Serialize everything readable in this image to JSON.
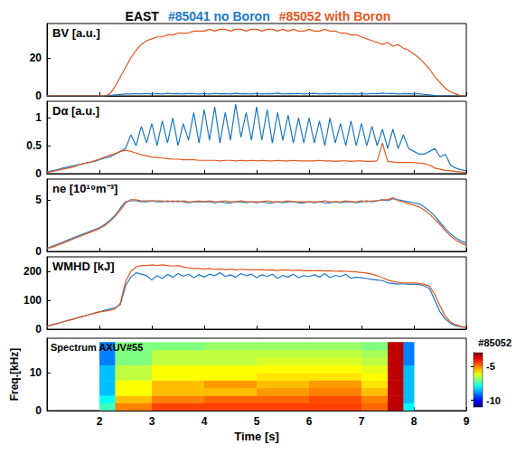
{
  "chart_data": {
    "type": "line",
    "title": "EAST",
    "xlabel": "Time [s]",
    "xlim": [
      1,
      9
    ],
    "xticks": [
      2,
      3,
      4,
      5,
      6,
      7,
      8,
      9
    ],
    "x": [
      1,
      1.1,
      1.2,
      1.3,
      1.4,
      1.5,
      1.6,
      1.7,
      1.8,
      1.9,
      2,
      2.1,
      2.2,
      2.3,
      2.4,
      2.5,
      2.6,
      2.7,
      2.8,
      2.9,
      3,
      3.1,
      3.2,
      3.3,
      3.4,
      3.5,
      3.6,
      3.7,
      3.8,
      3.9,
      4,
      4.1,
      4.2,
      4.3,
      4.4,
      4.5,
      4.6,
      4.7,
      4.8,
      4.9,
      5,
      5.1,
      5.2,
      5.3,
      5.4,
      5.5,
      5.6,
      5.7,
      5.8,
      5.9,
      6,
      6.1,
      6.2,
      6.3,
      6.4,
      6.5,
      6.6,
      6.7,
      6.8,
      6.9,
      7,
      7.1,
      7.2,
      7.3,
      7.4,
      7.5,
      7.6,
      7.7,
      7.8,
      7.9,
      8,
      8.1,
      8.2,
      8.3,
      8.4,
      8.5,
      8.6,
      8.7,
      8.8,
      8.9,
      9
    ],
    "panels": [
      {
        "label": "BV [a.u.]",
        "ylim": [
          0,
          38
        ],
        "yticks": [
          0,
          20
        ],
        "series": [
          {
            "name": "#85041 no Boron",
            "color": "#1e78c8",
            "values": [
              0,
              0,
              0,
              0,
              0,
              0,
              0,
              0,
              0,
              0,
              0,
              0,
              0.2,
              0.5,
              0.8,
              1,
              1,
              1.2,
              1,
              1.3,
              1,
              1.2,
              1,
              1.4,
              1.1,
              1.2,
              1,
              1.3,
              1.2,
              1,
              1.2,
              1,
              1.3,
              1.1,
              1.2,
              1,
              1.4,
              1.1,
              1.2,
              1,
              1.3,
              1,
              1.2,
              1.1,
              1.5,
              1,
              1.2,
              1.1,
              1.3,
              1,
              1.2,
              1.4,
              1,
              1.2,
              1.1,
              1.3,
              1,
              1.2,
              1.1,
              1,
              1.2,
              1,
              1.3,
              1.1,
              1.5,
              1.2,
              1.3,
              1,
              1.2,
              1.1,
              1,
              1.2,
              0.8,
              0.5,
              0.2,
              0,
              0,
              0,
              0,
              0,
              0
            ]
          },
          {
            "name": "#85052 with Boron",
            "color": "#e2581e",
            "values": [
              0,
              0,
              0,
              0,
              0,
              0,
              0,
              0,
              0,
              0,
              0,
              0,
              1,
              5,
              10,
              15,
              20,
              24,
              27,
              29,
              30,
              31,
              31,
              32,
              32,
              33,
              33,
              33,
              34,
              34,
              34,
              35,
              34,
              35,
              35,
              34,
              35,
              35,
              34,
              35,
              35,
              34,
              35,
              35,
              34,
              35,
              34,
              35,
              34,
              34,
              35,
              34,
              34,
              35,
              34,
              34,
              33,
              33,
              32,
              32,
              31,
              30,
              29,
              28,
              27,
              28,
              26,
              27,
              25,
              24,
              22,
              20,
              17,
              14,
              10,
              7,
              4,
              2,
              1,
              0,
              0
            ]
          }
        ]
      },
      {
        "label": "Dα [a.u.]",
        "ylim": [
          0,
          1.3
        ],
        "yticks": [
          0,
          0.5,
          1
        ],
        "series": [
          {
            "name": "#85041 no Boron",
            "color": "#1e78c8",
            "values": [
              0.03,
              0.05,
              0.07,
              0.1,
              0.12,
              0.14,
              0.16,
              0.18,
              0.2,
              0.22,
              0.25,
              0.28,
              0.3,
              0.35,
              0.4,
              0.45,
              0.7,
              0.5,
              0.85,
              0.55,
              0.9,
              0.5,
              0.95,
              0.55,
              1.0,
              0.5,
              0.9,
              0.6,
              1.1,
              0.55,
              1.15,
              0.6,
              1.2,
              0.55,
              1.1,
              0.6,
              1.25,
              0.65,
              1.1,
              0.6,
              1.2,
              0.6,
              1.15,
              0.55,
              1.1,
              0.6,
              1.05,
              0.55,
              1.0,
              0.55,
              1.0,
              0.55,
              0.95,
              0.5,
              1.0,
              0.55,
              0.9,
              0.5,
              0.95,
              0.5,
              0.9,
              0.5,
              0.85,
              0.5,
              0.8,
              0.45,
              0.8,
              0.45,
              0.7,
              0.45,
              0.4,
              0.35,
              0.35,
              0.4,
              0.45,
              0.3,
              0.35,
              0.15,
              0.1,
              0.07,
              0.05
            ]
          },
          {
            "name": "#85052 with Boron",
            "color": "#e2581e",
            "values": [
              0.02,
              0.04,
              0.06,
              0.08,
              0.1,
              0.12,
              0.15,
              0.18,
              0.2,
              0.23,
              0.26,
              0.3,
              0.33,
              0.36,
              0.4,
              0.42,
              0.4,
              0.37,
              0.34,
              0.32,
              0.3,
              0.29,
              0.28,
              0.27,
              0.26,
              0.26,
              0.25,
              0.25,
              0.25,
              0.24,
              0.24,
              0.24,
              0.24,
              0.23,
              0.24,
              0.24,
              0.23,
              0.24,
              0.23,
              0.24,
              0.23,
              0.24,
              0.23,
              0.23,
              0.24,
              0.23,
              0.23,
              0.24,
              0.23,
              0.23,
              0.23,
              0.23,
              0.24,
              0.23,
              0.23,
              0.22,
              0.23,
              0.23,
              0.22,
              0.23,
              0.23,
              0.22,
              0.22,
              0.23,
              0.55,
              0.22,
              0.21,
              0.2,
              0.2,
              0.2,
              0.2,
              0.19,
              0.18,
              0.15,
              0.1,
              0.08,
              0.06,
              0.05,
              0.04,
              0.03,
              0.02
            ]
          }
        ]
      },
      {
        "label": "ne [10¹⁹m⁻³]",
        "ylim": [
          0,
          7
        ],
        "yticks": [
          0,
          5
        ],
        "series": [
          {
            "name": "#85041 no Boron",
            "color": "#1e78c8",
            "values": [
              0.3,
              0.5,
              0.7,
              0.9,
              1.1,
              1.3,
              1.5,
              1.7,
              1.9,
              2.1,
              2.3,
              2.6,
              3.0,
              3.5,
              4.2,
              4.8,
              4.9,
              4.9,
              4.8,
              4.8,
              4.9,
              4.8,
              4.8,
              4.9,
              4.8,
              4.9,
              4.8,
              4.7,
              4.8,
              4.8,
              4.8,
              4.8,
              4.7,
              4.8,
              4.7,
              4.7,
              4.8,
              4.8,
              4.7,
              4.8,
              4.7,
              4.8,
              4.7,
              4.7,
              4.8,
              4.7,
              4.8,
              4.8,
              4.7,
              4.7,
              4.8,
              4.7,
              4.8,
              4.7,
              4.7,
              4.8,
              4.7,
              4.8,
              4.8,
              4.7,
              4.8,
              4.9,
              4.8,
              4.9,
              5.0,
              4.9,
              5.1,
              5.0,
              4.9,
              4.8,
              4.7,
              4.6,
              4.3,
              3.9,
              3.4,
              2.8,
              2.2,
              1.7,
              1.3,
              1.0,
              0.8
            ]
          },
          {
            "name": "#85052 with Boron",
            "color": "#e2581e",
            "values": [
              0.3,
              0.4,
              0.6,
              0.8,
              1.0,
              1.2,
              1.4,
              1.6,
              1.8,
              2.0,
              2.2,
              2.5,
              2.9,
              3.4,
              4.0,
              4.7,
              5.0,
              5.0,
              4.9,
              4.9,
              4.9,
              4.9,
              4.9,
              4.8,
              4.9,
              4.8,
              4.9,
              4.8,
              4.8,
              4.9,
              4.8,
              4.9,
              4.8,
              4.8,
              4.9,
              4.8,
              4.8,
              4.9,
              4.8,
              4.8,
              4.8,
              4.8,
              4.9,
              4.8,
              4.8,
              4.8,
              4.9,
              4.8,
              4.8,
              4.8,
              4.8,
              4.8,
              4.8,
              4.9,
              4.8,
              4.8,
              4.8,
              4.9,
              4.8,
              4.8,
              4.9,
              4.8,
              4.9,
              4.9,
              5.0,
              5.0,
              5.2,
              4.9,
              4.8,
              4.6,
              4.5,
              4.3,
              4.0,
              3.6,
              3.1,
              2.6,
              2.0,
              1.5,
              1.1,
              0.8,
              0.6
            ]
          }
        ]
      },
      {
        "label": "WMHD [kJ]",
        "ylim": [
          0,
          250
        ],
        "yticks": [
          0,
          100,
          200
        ],
        "series": [
          {
            "name": "#85041 no Boron",
            "color": "#1e78c8",
            "values": [
              10,
              15,
              20,
              25,
              30,
              35,
              40,
              45,
              50,
              55,
              60,
              65,
              70,
              75,
              85,
              150,
              180,
              195,
              190,
              185,
              170,
              185,
              175,
              190,
              180,
              192,
              183,
              190,
              178,
              188,
              180,
              190,
              185,
              195,
              182,
              188,
              180,
              192,
              185,
              190,
              178,
              188,
              182,
              190,
              176,
              186,
              180,
              190,
              178,
              185,
              182,
              188,
              180,
              192,
              178,
              186,
              182,
              190,
              176,
              180,
              178,
              175,
              172,
              170,
              168,
              160,
              158,
              156,
              157,
              155,
              155,
              154,
              150,
              140,
              100,
              60,
              35,
              20,
              12,
              8,
              5
            ]
          },
          {
            "name": "#85052 with Boron",
            "color": "#e2581e",
            "values": [
              10,
              15,
              20,
              25,
              30,
              35,
              40,
              45,
              50,
              55,
              60,
              62,
              65,
              70,
              90,
              165,
              200,
              215,
              220,
              220,
              222,
              220,
              222,
              220,
              218,
              220,
              215,
              212,
              210,
              210,
              208,
              210,
              207,
              208,
              206,
              208,
              205,
              207,
              206,
              205,
              205,
              206,
              204,
              205,
              203,
              205,
              204,
              203,
              204,
              202,
              203,
              202,
              203,
              201,
              202,
              200,
              201,
              200,
              199,
              198,
              196,
              194,
              190,
              185,
              178,
              170,
              165,
              162,
              160,
              160,
              160,
              158,
              155,
              148,
              120,
              80,
              45,
              25,
              15,
              10,
              6
            ]
          }
        ]
      }
    ],
    "spectrum": {
      "type": "heatmap",
      "label": "Spectrum AXUV#55",
      "shot": "#85052",
      "ylabel": "Freq.[kHz]",
      "ylim": [
        0,
        19
      ],
      "yticks": [
        0,
        10
      ],
      "x_edges": [
        2.0,
        2.3,
        3,
        4,
        5,
        6,
        7,
        7.5,
        7.8,
        8.0
      ],
      "y_edges": [
        0,
        2,
        4,
        6,
        8,
        10,
        12,
        14,
        16,
        18
      ],
      "cells": [
        [
          -7.5,
          -8,
          -8.5,
          -8.5,
          -8.5,
          -8.5,
          -9,
          -9,
          -9
        ],
        [
          -5,
          -5.5,
          -6,
          -6,
          -6.5,
          -6.5,
          -7,
          -7,
          -7
        ],
        [
          -4.5,
          -5,
          -5.5,
          -5.5,
          -6,
          -6,
          -6.5,
          -6.5,
          -7
        ],
        [
          -4.5,
          -4.8,
          -5.5,
          -5.2,
          -6,
          -6,
          -6.5,
          -6.5,
          -6.8
        ],
        [
          -4.5,
          -4.8,
          -5.2,
          -5.5,
          -5.8,
          -6,
          -6.3,
          -6.5,
          -6.8
        ],
        [
          -4.5,
          -4.6,
          -5,
          -5.2,
          -5.8,
          -6,
          -6.3,
          -6.5,
          -6.8
        ],
        [
          -4.8,
          -5,
          -5.5,
          -5.8,
          -6,
          -6.2,
          -6.5,
          -6.7,
          -7
        ],
        [
          -3.5,
          -3.5,
          -3.5,
          -3.5,
          -3.5,
          -3.5,
          -3.5,
          -3.5,
          -3.5
        ],
        [
          -8,
          -8.5,
          -8.5,
          -8.5,
          -8.5,
          -8.5,
          -9,
          -9,
          -9
        ]
      ],
      "colorbar_lim": [
        -11,
        -3
      ],
      "colorbar_ticks": [
        -5,
        -10
      ]
    }
  }
}
